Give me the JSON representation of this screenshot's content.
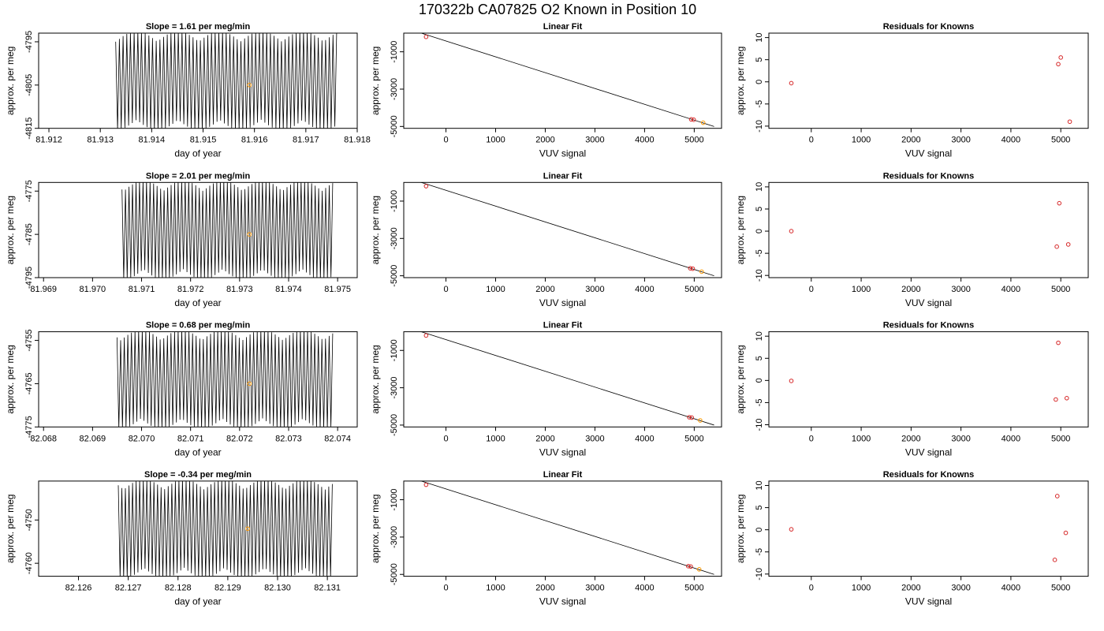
{
  "figure": {
    "title": "170322b     CA07825   O2 Known in Position  10"
  },
  "colors": {
    "trace": "#000000",
    "point_red": "#d62728",
    "point_orange": "#ff9900"
  },
  "chart_data": [
    {
      "row": 0,
      "type": "line",
      "title": "Slope =  1.61  per meg/min",
      "xlabel": "day of year",
      "ylabel": "approx. per meg",
      "xlim": [
        81.9118,
        81.918
      ],
      "ylim": [
        -4815,
        -4793
      ],
      "xticks": [
        "81.912",
        "81.913",
        "81.914",
        "81.915",
        "81.916",
        "81.917",
        "81.918"
      ],
      "yticks": [
        "-4815",
        "-4805",
        "-4795"
      ],
      "trace": {
        "x_start": 81.9133,
        "x_end": 81.9176,
        "center": -4804,
        "amplitude": 11,
        "cycles": 60
      },
      "marker": {
        "x": 81.9159,
        "y": -4805
      }
    },
    {
      "row": 0,
      "type": "scatter",
      "title": "Linear Fit",
      "xlabel": "VUV signal",
      "ylabel": "approx. per meg",
      "xlim": [
        -850,
        5550
      ],
      "ylim": [
        -5100,
        0
      ],
      "xticks": [
        "0",
        "1000",
        "2000",
        "3000",
        "4000",
        "5000"
      ],
      "yticks": [
        "-5000",
        "-3000",
        "-1000"
      ],
      "fit": {
        "x": [
          -650,
          5400
        ],
        "y": [
          130,
          -5000
        ]
      },
      "points": [
        {
          "x": -400,
          "y": -200,
          "color": "red"
        },
        {
          "x": 4940,
          "y": -4620,
          "color": "red"
        },
        {
          "x": 4990,
          "y": -4640,
          "color": "red"
        },
        {
          "x": 5180,
          "y": -4800,
          "color": "orange"
        }
      ]
    },
    {
      "row": 0,
      "type": "scatter",
      "title": "Residuals for Knowns",
      "xlabel": "VUV signal",
      "ylabel": "approx. per meg",
      "xlim": [
        -850,
        5550
      ],
      "ylim": [
        -10.5,
        11
      ],
      "xticks": [
        "0",
        "1000",
        "2000",
        "3000",
        "4000",
        "5000"
      ],
      "yticks": [
        "-10",
        "-5",
        "0",
        "5",
        "10"
      ],
      "points": [
        {
          "x": -400,
          "y": -0.3,
          "color": "red"
        },
        {
          "x": 4950,
          "y": 4,
          "color": "red"
        },
        {
          "x": 5000,
          "y": 5.5,
          "color": "red"
        },
        {
          "x": 5180,
          "y": -9,
          "color": "red"
        }
      ]
    },
    {
      "row": 1,
      "type": "line",
      "title": "Slope =  2.01  per meg/min",
      "xlabel": "day of year",
      "ylabel": "approx. per meg",
      "xlim": [
        81.9689,
        81.9754
      ],
      "ylim": [
        -4795,
        -4773
      ],
      "xticks": [
        "81.969",
        "81.970",
        "81.971",
        "81.972",
        "81.973",
        "81.974",
        "81.975"
      ],
      "yticks": [
        "-4795",
        "-4785",
        "-4775"
      ],
      "trace": {
        "x_start": 81.9706,
        "x_end": 81.9749,
        "center": -4784,
        "amplitude": 11,
        "cycles": 60
      },
      "marker": {
        "x": 81.9732,
        "y": -4785
      }
    },
    {
      "row": 1,
      "type": "scatter",
      "title": "Linear Fit",
      "xlabel": "VUV signal",
      "ylabel": "approx. per meg",
      "xlim": [
        -850,
        5550
      ],
      "ylim": [
        -5100,
        0
      ],
      "xticks": [
        "0",
        "1000",
        "2000",
        "3000",
        "4000",
        "5000"
      ],
      "yticks": [
        "-5000",
        "-3000",
        "-1000"
      ],
      "fit": {
        "x": [
          -650,
          5400
        ],
        "y": [
          130,
          -5000
        ]
      },
      "points": [
        {
          "x": -400,
          "y": -200,
          "color": "red"
        },
        {
          "x": 4920,
          "y": -4600,
          "color": "red"
        },
        {
          "x": 4970,
          "y": -4620,
          "color": "red"
        },
        {
          "x": 5150,
          "y": -4780,
          "color": "orange"
        }
      ]
    },
    {
      "row": 1,
      "type": "scatter",
      "title": "Residuals for Knowns",
      "xlabel": "VUV signal",
      "ylabel": "approx. per meg",
      "xlim": [
        -850,
        5550
      ],
      "ylim": [
        -10.5,
        11
      ],
      "xticks": [
        "0",
        "1000",
        "2000",
        "3000",
        "4000",
        "5000"
      ],
      "yticks": [
        "-10",
        "-5",
        "0",
        "5",
        "10"
      ],
      "points": [
        {
          "x": -400,
          "y": 0,
          "color": "red"
        },
        {
          "x": 4920,
          "y": -3.5,
          "color": "red"
        },
        {
          "x": 4970,
          "y": 6.3,
          "color": "red"
        },
        {
          "x": 5150,
          "y": -3,
          "color": "red"
        }
      ]
    },
    {
      "row": 2,
      "type": "line",
      "title": "Slope =  0.68  per meg/min",
      "xlabel": "day of year",
      "ylabel": "approx. per meg",
      "xlim": [
        82.0679,
        82.0744
      ],
      "ylim": [
        -4775,
        -4753
      ],
      "xticks": [
        "82.068",
        "82.069",
        "82.070",
        "82.071",
        "82.072",
        "82.073",
        "82.074"
      ],
      "yticks": [
        "-4775",
        "-4765",
        "-4755"
      ],
      "trace": {
        "x_start": 82.0695,
        "x_end": 82.0739,
        "center": -4764,
        "amplitude": 11,
        "cycles": 60
      },
      "marker": {
        "x": 82.0722,
        "y": -4765
      }
    },
    {
      "row": 2,
      "type": "scatter",
      "title": "Linear Fit",
      "xlabel": "VUV signal",
      "ylabel": "approx. per meg",
      "xlim": [
        -850,
        5550
      ],
      "ylim": [
        -5100,
        0
      ],
      "xticks": [
        "0",
        "1000",
        "2000",
        "3000",
        "4000",
        "5000"
      ],
      "yticks": [
        "-5000",
        "-3000",
        "-1000"
      ],
      "fit": {
        "x": [
          -650,
          5400
        ],
        "y": [
          130,
          -5000
        ]
      },
      "points": [
        {
          "x": -400,
          "y": -200,
          "color": "red"
        },
        {
          "x": 4900,
          "y": -4580,
          "color": "red"
        },
        {
          "x": 4950,
          "y": -4600,
          "color": "red"
        },
        {
          "x": 5120,
          "y": -4750,
          "color": "orange"
        }
      ]
    },
    {
      "row": 2,
      "type": "scatter",
      "title": "Residuals for Knowns",
      "xlabel": "VUV signal",
      "ylabel": "approx. per meg",
      "xlim": [
        -850,
        5550
      ],
      "ylim": [
        -10.5,
        11
      ],
      "xticks": [
        "0",
        "1000",
        "2000",
        "3000",
        "4000",
        "5000"
      ],
      "yticks": [
        "-10",
        "-5",
        "0",
        "5",
        "10"
      ],
      "points": [
        {
          "x": -400,
          "y": -0.1,
          "color": "red"
        },
        {
          "x": 4900,
          "y": -4.3,
          "color": "red"
        },
        {
          "x": 4950,
          "y": 8.5,
          "color": "red"
        },
        {
          "x": 5120,
          "y": -4,
          "color": "red"
        }
      ]
    },
    {
      "row": 3,
      "type": "line",
      "title": "Slope =  -0.34  per meg/min",
      "xlabel": "day of year",
      "ylabel": "approx. per meg",
      "xlim": [
        82.1252,
        82.1316
      ],
      "ylim": [
        -4763,
        -4741
      ],
      "xticks": [
        "82.126",
        "82.127",
        "82.128",
        "82.129",
        "82.130",
        "82.131"
      ],
      "yticks": [
        "-4760",
        "-4750"
      ],
      "trace": {
        "x_start": 82.1268,
        "x_end": 82.1311,
        "center": -4752,
        "amplitude": 11,
        "cycles": 60
      },
      "marker": {
        "x": 82.1294,
        "y": -4752
      }
    },
    {
      "row": 3,
      "type": "scatter",
      "title": "Linear Fit",
      "xlabel": "VUV signal",
      "ylabel": "approx. per meg",
      "xlim": [
        -850,
        5550
      ],
      "ylim": [
        -5100,
        0
      ],
      "xticks": [
        "0",
        "1000",
        "2000",
        "3000",
        "4000",
        "5000"
      ],
      "yticks": [
        "-5000",
        "-3000",
        "-1000"
      ],
      "fit": {
        "x": [
          -650,
          5400
        ],
        "y": [
          130,
          -5000
        ]
      },
      "points": [
        {
          "x": -400,
          "y": -200,
          "color": "red"
        },
        {
          "x": 4880,
          "y": -4560,
          "color": "red"
        },
        {
          "x": 4930,
          "y": -4580,
          "color": "red"
        },
        {
          "x": 5100,
          "y": -4730,
          "color": "orange"
        }
      ]
    },
    {
      "row": 3,
      "type": "scatter",
      "title": "Residuals for Knowns",
      "xlabel": "VUV signal",
      "ylabel": "approx. per meg",
      "xlim": [
        -850,
        5550
      ],
      "ylim": [
        -10.5,
        11
      ],
      "xticks": [
        "0",
        "1000",
        "2000",
        "3000",
        "4000",
        "5000"
      ],
      "yticks": [
        "-10",
        "-5",
        "0",
        "5",
        "10"
      ],
      "points": [
        {
          "x": -400,
          "y": 0.1,
          "color": "red"
        },
        {
          "x": 4880,
          "y": -6.8,
          "color": "red"
        },
        {
          "x": 4930,
          "y": 7.6,
          "color": "red"
        },
        {
          "x": 5100,
          "y": -0.7,
          "color": "red"
        }
      ]
    }
  ]
}
